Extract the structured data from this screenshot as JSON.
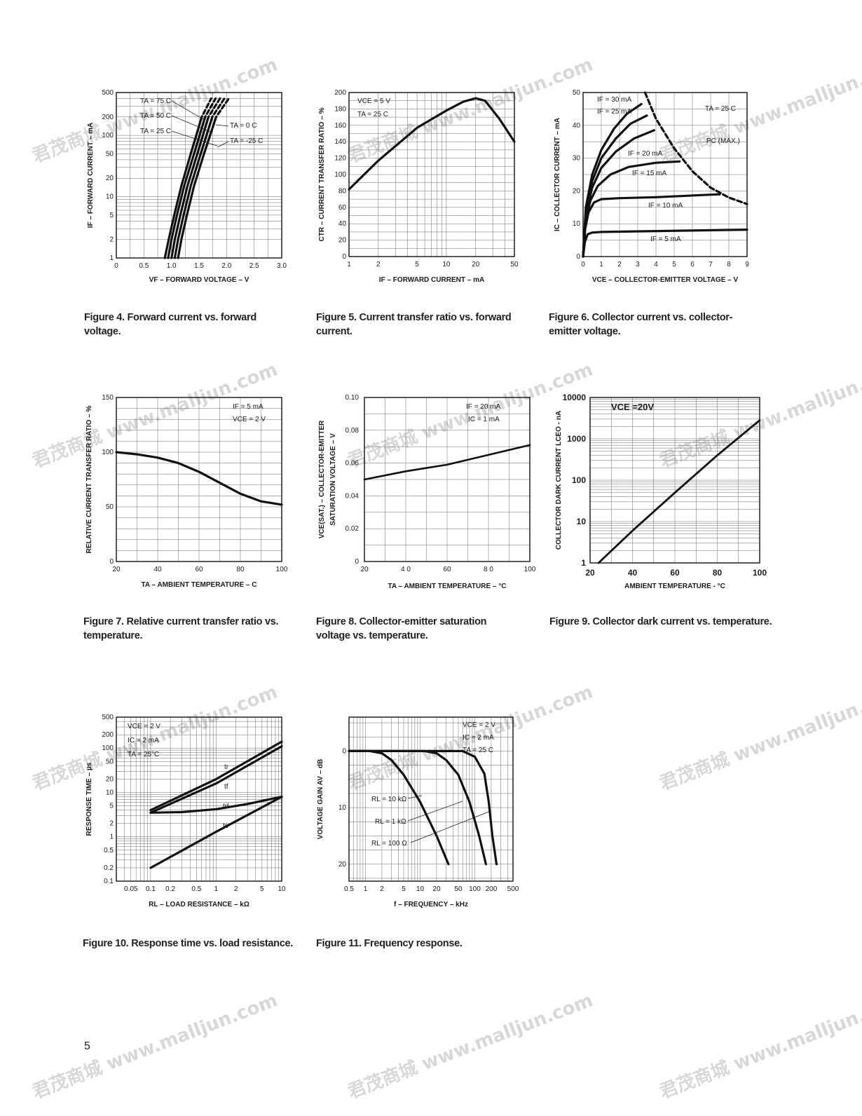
{
  "page_number": "5",
  "watermark": "君茂商城 www.malljun.com",
  "figures": [
    {
      "id": "fig4",
      "caption": "Figure 4. Forward current vs. forward voltage.",
      "xlabel": "VF – FORWARD VOLTAGE – V",
      "ylabel": "IF – FORWARD CURRENT – mA",
      "x_ticks": [
        "0",
        "0.5",
        "1.0",
        "1.5",
        "2.0",
        "2.5",
        "3.0"
      ],
      "y_ticks": [
        "1",
        "2",
        "5",
        "10",
        "20",
        "50",
        "100",
        "200",
        "500"
      ],
      "annotations": [
        "TA = 75 C",
        "TA = 50 C",
        "TA = 25 C",
        "TA = 0 C",
        "TA = -25 C"
      ]
    },
    {
      "id": "fig5",
      "caption": "Figure 5. Current transfer ratio vs. forward current.",
      "xlabel": "IF – FORWARD CURRENT – mA",
      "ylabel": "CTR – CURRENT TRANSFER RATIO – %",
      "x_ticks": [
        "1",
        "2",
        "5",
        "10",
        "20",
        "50"
      ],
      "y_ticks": [
        "0",
        "20",
        "40",
        "60",
        "80",
        "100",
        "120",
        "140",
        "160",
        "180",
        "200"
      ],
      "annotations": [
        "VCE = 5 V",
        "TA = 25 C"
      ]
    },
    {
      "id": "fig6",
      "caption": "Figure 6. Collector current vs. collector-emitter voltage.",
      "xlabel": "VCE – COLLECTOR-EMITTER VOLTAGE – V",
      "ylabel": "IC – COLLECTOR CURRENT – mA",
      "x_ticks": [
        "0",
        "1",
        "2",
        "3",
        "4",
        "5",
        "6",
        "7",
        "8",
        "9"
      ],
      "y_ticks": [
        "0",
        "10",
        "20",
        "30",
        "40",
        "50"
      ],
      "annotations": [
        "IF = 30 mA",
        "IF = 25 mA",
        "IF = 20 mA",
        "IF = 15 mA",
        "IF = 10 mA",
        "IF = 5 mA",
        "TA = 25 C",
        "PC (MAX.)"
      ]
    },
    {
      "id": "fig7",
      "caption": "Figure 7. Relative current transfer ratio vs. temperature.",
      "xlabel": "TA – AMBIENT TEMPERATURE – C",
      "ylabel": "RELATIVE CURRENT TRANSFER RATIO – %",
      "x_ticks": [
        "20",
        "40",
        "60",
        "80",
        "100"
      ],
      "y_ticks": [
        "0",
        "50",
        "100",
        "150"
      ],
      "annotations": [
        "IF = 5 mA",
        "VCE = 2 V"
      ]
    },
    {
      "id": "fig8",
      "caption": "Figure 8. Collector-emitter saturation voltage vs. temperature.",
      "xlabel": "TA – AMBIENT TEMPERATURE – °C",
      "ylabel": "VCE(SAT.) – COLLECTOR-EMITTER SATURATION VOLTAGE – V",
      "x_ticks": [
        "20",
        "4 0",
        "60",
        "8 0",
        "100"
      ],
      "y_ticks": [
        "0",
        "0.02",
        "0.04",
        "0.06",
        "0.08",
        "0.10"
      ],
      "annotations": [
        "IF = 20 mA",
        "IC = 1 mA"
      ]
    },
    {
      "id": "fig9",
      "caption": "Figure 9. Collector dark current vs. temperature.",
      "xlabel": "AMBIENT TEMPERATURE - °C",
      "ylabel": "COLLECTOR DARK CURRENT LCEO - nA",
      "x_ticks": [
        "20",
        "40",
        "60",
        "80",
        "100"
      ],
      "y_ticks": [
        "1",
        "10",
        "100",
        "1000",
        "10000"
      ],
      "annotations": [
        "VCE =20V"
      ]
    },
    {
      "id": "fig10",
      "caption": "Figure 10. Response time vs. load resistance.",
      "xlabel": "RL – LOAD RESISTANCE – kΩ",
      "ylabel": "RESPONSE TIME – µs",
      "x_ticks": [
        "0.05",
        "0.1",
        "0.2",
        "0.5",
        "1",
        "2",
        "5",
        "10"
      ],
      "y_ticks": [
        "0.1",
        "0.2",
        "0.5",
        "1",
        "2",
        "5",
        "10",
        "20",
        "50",
        "100",
        "200",
        "500"
      ],
      "annotations": [
        "VCE = 2 V",
        "IC = 2 mA",
        "TA = 25°C",
        "tr",
        "tf",
        "td",
        "ts"
      ]
    },
    {
      "id": "fig11",
      "caption": "Figure 11. Frequency response.",
      "xlabel": "f – FREQUENCY – kHz",
      "ylabel": "VOLTAGE GAIN AV – dB",
      "x_ticks": [
        "0.5",
        "1",
        "2",
        "5",
        "10",
        "20",
        "50",
        "100",
        "200",
        "500"
      ],
      "y_ticks": [
        "0",
        "10",
        "20"
      ],
      "annotations": [
        "VCE = 2 V",
        "IC = 2 mA",
        "TA = 25 C",
        "RL = 10 kΩ",
        "RL = 1 kΩ",
        "RL = 100 Ω"
      ]
    }
  ],
  "chart_data": [
    {
      "type": "line",
      "figure": "fig4",
      "x_scale": "linear",
      "y_scale": "log",
      "xlim": [
        0,
        3.0
      ],
      "ylim": [
        1,
        500
      ],
      "series": [
        {
          "name": "TA = 75 C",
          "x": [
            0.88,
            0.95,
            1.05,
            1.18,
            1.35,
            1.55,
            1.72
          ],
          "y": [
            1,
            2,
            5,
            15,
            50,
            200,
            400
          ]
        },
        {
          "name": "TA = 50 C",
          "x": [
            0.94,
            1.0,
            1.1,
            1.23,
            1.41,
            1.61,
            1.8
          ],
          "y": [
            1,
            2,
            5,
            15,
            50,
            200,
            400
          ]
        },
        {
          "name": "TA = 25 C",
          "x": [
            1.0,
            1.06,
            1.16,
            1.29,
            1.47,
            1.67,
            1.88
          ],
          "y": [
            1,
            2,
            5,
            15,
            50,
            200,
            400
          ]
        },
        {
          "name": "TA = 0 C",
          "x": [
            1.06,
            1.12,
            1.22,
            1.35,
            1.53,
            1.74,
            1.96
          ],
          "y": [
            1,
            2,
            5,
            15,
            50,
            200,
            400
          ]
        },
        {
          "name": "TA = -25 C",
          "x": [
            1.12,
            1.18,
            1.28,
            1.41,
            1.59,
            1.81,
            2.04
          ],
          "y": [
            1,
            2,
            5,
            15,
            50,
            200,
            400
          ]
        }
      ]
    },
    {
      "type": "line",
      "figure": "fig5",
      "x_scale": "log",
      "y_scale": "linear",
      "xlim": [
        1,
        50
      ],
      "ylim": [
        0,
        200
      ],
      "series": [
        {
          "x": [
            1,
            2,
            5,
            10,
            15,
            20,
            25,
            35,
            50
          ],
          "y": [
            82,
            117,
            157,
            178,
            189,
            193,
            190,
            168,
            140
          ]
        }
      ]
    },
    {
      "type": "line",
      "figure": "fig6",
      "x_scale": "linear",
      "y_scale": "linear",
      "xlim": [
        0,
        9
      ],
      "ylim": [
        0,
        50
      ],
      "series": [
        {
          "name": "IF = 5 mA",
          "x": [
            0,
            0.1,
            0.25,
            0.5,
            1,
            9
          ],
          "y": [
            0,
            4.5,
            6.8,
            7.3,
            7.5,
            8.2
          ]
        },
        {
          "name": "IF = 10 mA",
          "x": [
            0,
            0.1,
            0.3,
            0.6,
            1,
            2,
            4,
            7.5
          ],
          "y": [
            0,
            8,
            13.5,
            16.5,
            17.5,
            17.8,
            18.1,
            19
          ]
        },
        {
          "name": "IF = 15 mA",
          "x": [
            0,
            0.15,
            0.4,
            0.8,
            1.5,
            2.5,
            4,
            5.3
          ],
          "y": [
            0,
            11,
            17,
            21.5,
            25,
            27.3,
            28.6,
            29
          ]
        },
        {
          "name": "IF = 20 mA",
          "x": [
            0,
            0.15,
            0.5,
            1,
            1.8,
            2.8,
            3.9
          ],
          "y": [
            0,
            13,
            21,
            27,
            32,
            36,
            38.5
          ]
        },
        {
          "name": "IF = 25 mA",
          "x": [
            0,
            0.15,
            0.5,
            1,
            1.8,
            2.6,
            3.5
          ],
          "y": [
            0,
            14,
            23,
            30,
            36,
            40.5,
            43
          ]
        },
        {
          "name": "IF = 30 mA",
          "x": [
            0,
            0.15,
            0.5,
            1,
            1.7,
            2.4,
            3.2
          ],
          "y": [
            0,
            15,
            25,
            32.5,
            39,
            43.5,
            46.5
          ]
        },
        {
          "name": "PC (MAX.)",
          "x": [
            3.4,
            4,
            5,
            6,
            7,
            8,
            9
          ],
          "y": [
            50,
            42,
            33,
            26,
            21,
            18,
            16
          ]
        }
      ]
    },
    {
      "type": "line",
      "figure": "fig7",
      "x_scale": "linear",
      "y_scale": "linear",
      "xlim": [
        20,
        100
      ],
      "ylim": [
        0,
        150
      ],
      "series": [
        {
          "x": [
            20,
            30,
            40,
            50,
            60,
            70,
            80,
            90,
            100
          ],
          "y": [
            100,
            98,
            95,
            90,
            82,
            72,
            62,
            55,
            52
          ]
        }
      ]
    },
    {
      "type": "line",
      "figure": "fig8",
      "x_scale": "linear",
      "y_scale": "linear",
      "xlim": [
        20,
        100
      ],
      "ylim": [
        0,
        0.1
      ],
      "series": [
        {
          "x": [
            20,
            40,
            60,
            80,
            100
          ],
          "y": [
            0.05,
            0.055,
            0.059,
            0.065,
            0.071
          ]
        }
      ]
    },
    {
      "type": "line",
      "figure": "fig9",
      "x_scale": "linear",
      "y_scale": "log",
      "xlim": [
        20,
        100
      ],
      "ylim": [
        1,
        10000
      ],
      "series": [
        {
          "x": [
            24,
            40,
            60,
            80,
            100
          ],
          "y": [
            1,
            6,
            50,
            400,
            2800
          ]
        }
      ]
    },
    {
      "type": "line",
      "figure": "fig10",
      "x_scale": "log",
      "y_scale": "log",
      "xlim": [
        0.03,
        10
      ],
      "ylim": [
        0.1,
        500
      ],
      "series": [
        {
          "name": "tr",
          "x": [
            0.1,
            1,
            10
          ],
          "y": [
            4,
            20,
            140
          ]
        },
        {
          "name": "tf",
          "x": [
            0.1,
            1,
            10
          ],
          "y": [
            3.5,
            16,
            110
          ]
        },
        {
          "name": "td",
          "x": [
            0.1,
            0.3,
            1,
            3,
            10
          ],
          "y": [
            3.5,
            3.6,
            4.2,
            5.5,
            8
          ]
        },
        {
          "name": "ts",
          "x": [
            0.1,
            1,
            10
          ],
          "y": [
            0.2,
            1.3,
            8
          ]
        }
      ]
    },
    {
      "type": "line",
      "figure": "fig11",
      "x_scale": "log",
      "y_scale": "linear",
      "xlim": [
        0.5,
        500
      ],
      "ylim_inverted": [
        -6,
        23
      ],
      "series": [
        {
          "name": "RL = 10 kΩ",
          "x": [
            0.5,
            1.2,
            2,
            3,
            5,
            10,
            20,
            33
          ],
          "y": [
            0,
            0,
            0.4,
            1.6,
            4.2,
            9,
            15,
            20
          ]
        },
        {
          "name": "RL = 1 kΩ",
          "x": [
            0.5,
            12,
            20,
            30,
            50,
            80,
            120,
            160
          ],
          "y": [
            0,
            0,
            0.4,
            1.6,
            4.2,
            9,
            15,
            20
          ]
        },
        {
          "name": "RL = 100 Ω",
          "x": [
            0.5,
            60,
            100,
            150,
            180,
            210,
            250
          ],
          "y": [
            0,
            0,
            1,
            4,
            9,
            15,
            20
          ]
        }
      ]
    }
  ]
}
